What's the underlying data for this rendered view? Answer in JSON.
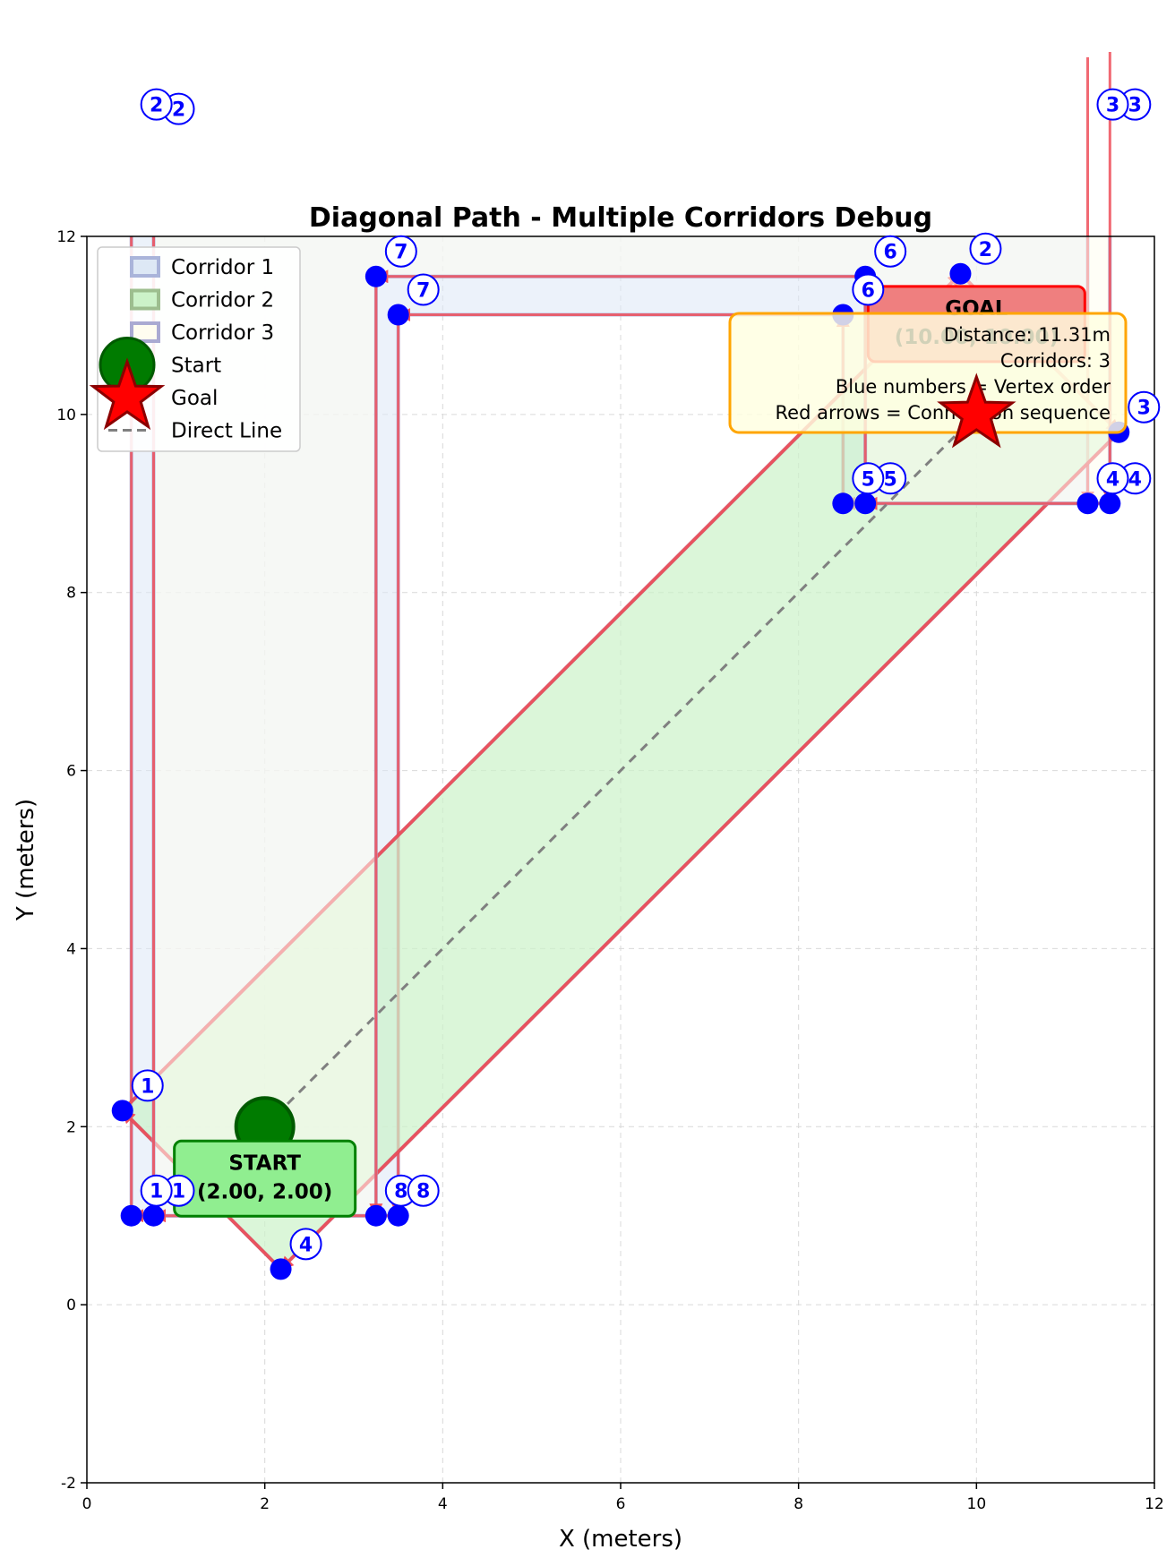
{
  "chart_data": {
    "type": "scatter",
    "title": "Diagonal Path - Multiple Corridors Debug",
    "xlabel": "X (meters)",
    "ylabel": "Y (meters)",
    "xlim": [
      0,
      12
    ],
    "ylim": [
      -2,
      12
    ],
    "xticks": [
      0,
      2,
      4,
      6,
      8,
      10,
      12
    ],
    "yticks": [
      -2,
      0,
      2,
      4,
      6,
      8,
      10,
      12
    ],
    "grid": true,
    "legend_position": "top-left",
    "legend": [
      {
        "label": "Corridor 1",
        "kind": "corridor",
        "color": "#aab4da"
      },
      {
        "label": "Corridor 2",
        "kind": "corridor",
        "color": "#9dbe8f"
      },
      {
        "label": "Corridor 3",
        "kind": "corridor",
        "color": "#aaaad2"
      },
      {
        "label": "Start",
        "kind": "start",
        "color": "#007b00"
      },
      {
        "label": "Goal",
        "kind": "goal",
        "color": "#ff0000"
      },
      {
        "label": "Direct Line",
        "kind": "line",
        "color": "#808080"
      }
    ],
    "start": {
      "x": 2.0,
      "y": 2.0,
      "label_title": "START",
      "label_coords": "(2.00, 2.00)"
    },
    "goal": {
      "x": 10.0,
      "y": 10.0,
      "label_title": "GOAL",
      "label_coords": "(10.00, 10.00)"
    },
    "info_box": [
      "Distance: 11.31m",
      "Corridors: 3",
      "Blue numbers = Vertex order",
      "Red arrows = Connection sequence"
    ],
    "corridors": [
      {
        "name": "Corridor 1",
        "fill": "#dde8f5",
        "edge": "#aab4da",
        "vertices": [
          [
            0.5,
            1.0
          ],
          [
            0.5,
            13.2
          ],
          [
            11.25,
            13.2
          ],
          [
            11.25,
            9.0
          ],
          [
            8.5,
            9.0
          ],
          [
            8.5,
            11.12
          ],
          [
            3.5,
            11.12
          ],
          [
            3.5,
            1.0
          ]
        ]
      },
      {
        "name": "Corridor 2",
        "fill": "#ccf2c9",
        "edge": "#c8485e",
        "vertices": [
          [
            0.4,
            2.18
          ],
          [
            9.82,
            11.58
          ],
          [
            11.6,
            9.8
          ],
          [
            2.18,
            0.4
          ]
        ]
      },
      {
        "name": "Corridor 3",
        "fill": "#fffdf0",
        "edge": "#aaaad2",
        "vertices": [
          [
            0.75,
            1.0
          ],
          [
            0.75,
            13.15
          ],
          [
            11.5,
            13.2
          ],
          [
            11.5,
            9.0
          ],
          [
            8.75,
            9.0
          ],
          [
            8.75,
            11.55
          ],
          [
            3.25,
            11.55
          ],
          [
            3.25,
            1.0
          ]
        ]
      }
    ],
    "vertex_labels": [
      {
        "text": "1",
        "x": 0.75,
        "y": 1.0
      },
      {
        "text": "2",
        "x": 0.75,
        "y": 13.15
      },
      {
        "text": "3",
        "x": 11.5,
        "y": 13.2
      },
      {
        "text": "4",
        "x": 11.5,
        "y": 9.0
      },
      {
        "text": "5",
        "x": 8.75,
        "y": 9.0
      },
      {
        "text": "6",
        "x": 8.75,
        "y": 11.55
      },
      {
        "text": "7",
        "x": 3.25,
        "y": 11.55
      },
      {
        "text": "8",
        "x": 3.25,
        "y": 1.0
      },
      {
        "text": "1",
        "x": 0.4,
        "y": 2.18
      },
      {
        "text": "2",
        "x": 9.82,
        "y": 11.58
      },
      {
        "text": "3",
        "x": 11.6,
        "y": 9.8
      },
      {
        "text": "4",
        "x": 2.18,
        "y": 0.4
      },
      {
        "text": "1",
        "x": 0.5,
        "y": 1.0
      },
      {
        "text": "2",
        "x": 0.5,
        "y": 13.2
      },
      {
        "text": "3",
        "x": 11.25,
        "y": 13.2
      },
      {
        "text": "4",
        "x": 11.25,
        "y": 9.0
      },
      {
        "text": "5",
        "x": 8.5,
        "y": 9.0
      },
      {
        "text": "6",
        "x": 8.5,
        "y": 11.12
      },
      {
        "text": "7",
        "x": 3.5,
        "y": 11.12
      },
      {
        "text": "8",
        "x": 3.5,
        "y": 1.0
      }
    ]
  }
}
